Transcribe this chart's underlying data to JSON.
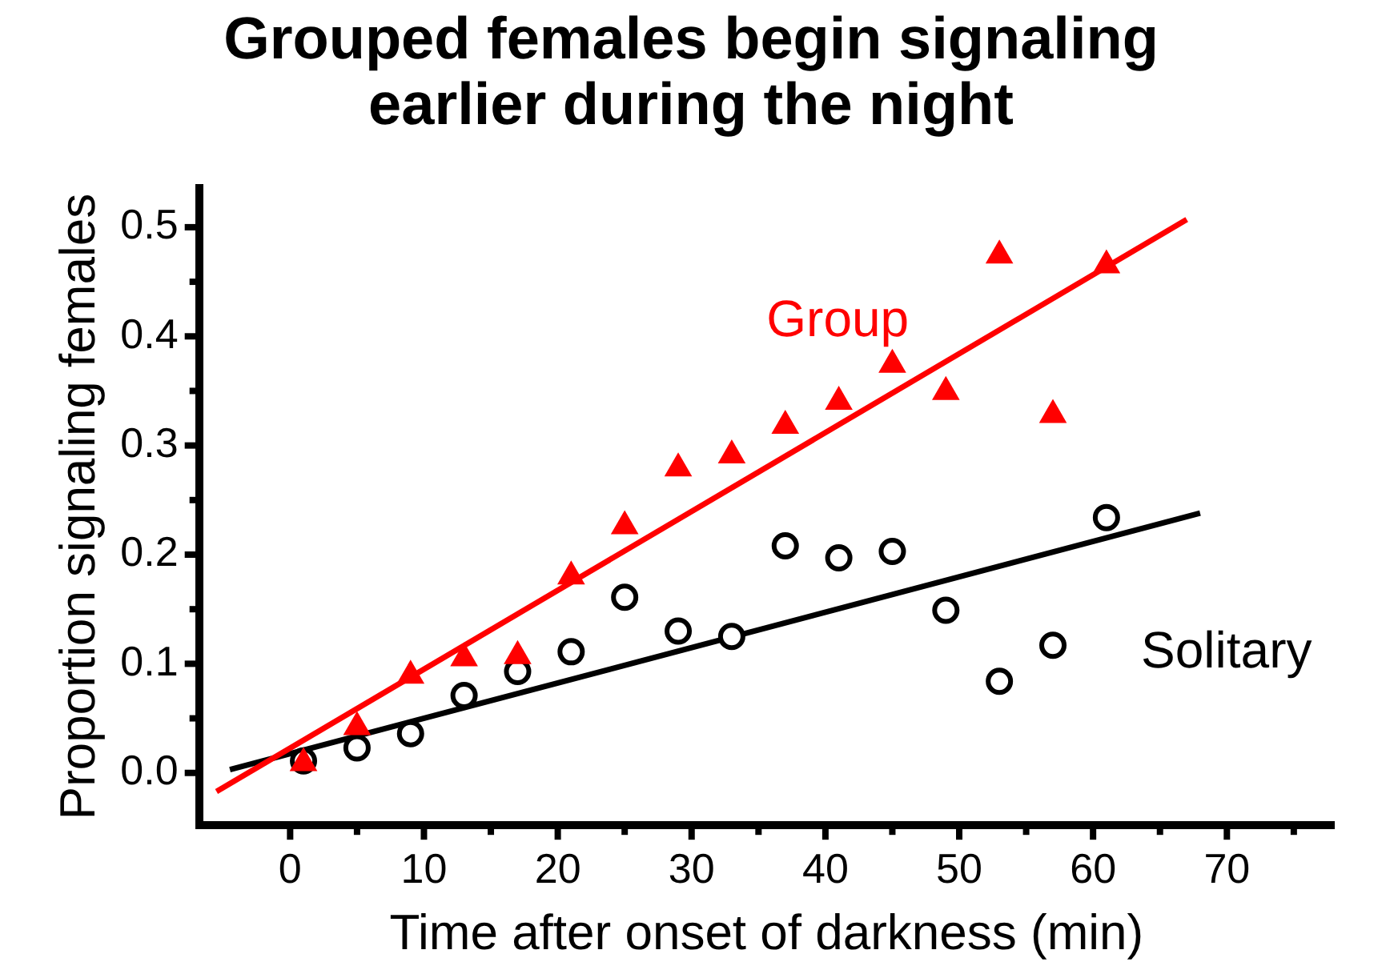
{
  "chart_data": {
    "type": "scatter",
    "title": "Grouped females begin signaling\nearlier during the night",
    "xlabel": "Time after onset of darkness (min)",
    "ylabel": "Proportion signaling females",
    "xlim": [
      -6.8,
      78
    ],
    "ylim": [
      -0.048,
      0.536
    ],
    "xticks": [
      0,
      {
        "value": 5,
        "label": null
      },
      10,
      {
        "value": 15,
        "label": null
      },
      20,
      {
        "value": 25,
        "label": null
      },
      30,
      {
        "value": 35,
        "label": null
      },
      40,
      {
        "value": 45,
        "label": null
      },
      50,
      {
        "value": 55,
        "label": null
      },
      60,
      {
        "value": 65,
        "label": null
      },
      70,
      {
        "value": 75,
        "label": null
      }
    ],
    "yticks": [
      {
        "value": 0,
        "label": "0.0"
      },
      {
        "value": 0.05,
        "label": null
      },
      {
        "value": 0.1,
        "label": "0.1"
      },
      {
        "value": 0.15,
        "label": null
      },
      {
        "value": 0.2,
        "label": "0.2"
      },
      {
        "value": 0.25,
        "label": null
      },
      {
        "value": 0.3,
        "label": "0.3"
      },
      {
        "value": 0.35,
        "label": null
      },
      {
        "value": 0.4,
        "label": "0.4"
      },
      {
        "value": 0.45,
        "label": null
      },
      {
        "value": 0.5,
        "label": "0.5"
      }
    ],
    "grid": false,
    "legend": false,
    "x": [
      1,
      5,
      9,
      13,
      17,
      21,
      25,
      29,
      33,
      37,
      41,
      45,
      49,
      53,
      57,
      61
    ],
    "series": [
      {
        "name": "Group",
        "color": "#ff0000",
        "marker": "triangle",
        "values": [
          0.009,
          0.042,
          0.089,
          0.105,
          0.107,
          0.18,
          0.226,
          0.279,
          0.291,
          0.318,
          0.34,
          0.374,
          0.349,
          0.474,
          0.328,
          0.465
        ]
      },
      {
        "name": "Solitary",
        "color": "#000000",
        "marker": "circle",
        "values": [
          0.011,
          0.023,
          0.036,
          0.071,
          0.093,
          0.111,
          0.161,
          0.13,
          0.125,
          0.208,
          0.197,
          0.203,
          0.149,
          0.084,
          0.117,
          0.234
        ]
      },
      {
        "type": "line",
        "color": "#ff0000",
        "marker": "none",
        "x": [
          -5.5,
          67
        ],
        "values": [
          -0.017,
          0.507
        ]
      },
      {
        "type": "line",
        "color": "#000000",
        "marker": "none",
        "x": [
          -4.5,
          68
        ],
        "values": [
          0.003,
          0.238
        ]
      }
    ]
  }
}
